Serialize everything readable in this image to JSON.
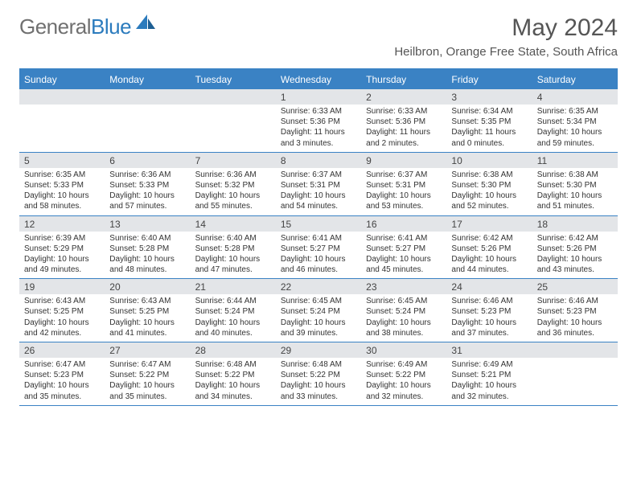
{
  "brand": {
    "part1": "General",
    "part2": "Blue"
  },
  "title": "May 2024",
  "location": "Heilbron, Orange Free State, South Africa",
  "colors": {
    "accent": "#3a82c4",
    "header_bg": "#3a82c4",
    "datenum_bg": "#e3e5e8",
    "text": "#333333",
    "muted": "#707070"
  },
  "day_names": [
    "Sunday",
    "Monday",
    "Tuesday",
    "Wednesday",
    "Thursday",
    "Friday",
    "Saturday"
  ],
  "weeks": [
    [
      null,
      null,
      null,
      {
        "n": "1",
        "sr": "6:33 AM",
        "ss": "5:36 PM",
        "dl": "11 hours and 3 minutes."
      },
      {
        "n": "2",
        "sr": "6:33 AM",
        "ss": "5:36 PM",
        "dl": "11 hours and 2 minutes."
      },
      {
        "n": "3",
        "sr": "6:34 AM",
        "ss": "5:35 PM",
        "dl": "11 hours and 0 minutes."
      },
      {
        "n": "4",
        "sr": "6:35 AM",
        "ss": "5:34 PM",
        "dl": "10 hours and 59 minutes."
      }
    ],
    [
      {
        "n": "5",
        "sr": "6:35 AM",
        "ss": "5:33 PM",
        "dl": "10 hours and 58 minutes."
      },
      {
        "n": "6",
        "sr": "6:36 AM",
        "ss": "5:33 PM",
        "dl": "10 hours and 57 minutes."
      },
      {
        "n": "7",
        "sr": "6:36 AM",
        "ss": "5:32 PM",
        "dl": "10 hours and 55 minutes."
      },
      {
        "n": "8",
        "sr": "6:37 AM",
        "ss": "5:31 PM",
        "dl": "10 hours and 54 minutes."
      },
      {
        "n": "9",
        "sr": "6:37 AM",
        "ss": "5:31 PM",
        "dl": "10 hours and 53 minutes."
      },
      {
        "n": "10",
        "sr": "6:38 AM",
        "ss": "5:30 PM",
        "dl": "10 hours and 52 minutes."
      },
      {
        "n": "11",
        "sr": "6:38 AM",
        "ss": "5:30 PM",
        "dl": "10 hours and 51 minutes."
      }
    ],
    [
      {
        "n": "12",
        "sr": "6:39 AM",
        "ss": "5:29 PM",
        "dl": "10 hours and 49 minutes."
      },
      {
        "n": "13",
        "sr": "6:40 AM",
        "ss": "5:28 PM",
        "dl": "10 hours and 48 minutes."
      },
      {
        "n": "14",
        "sr": "6:40 AM",
        "ss": "5:28 PM",
        "dl": "10 hours and 47 minutes."
      },
      {
        "n": "15",
        "sr": "6:41 AM",
        "ss": "5:27 PM",
        "dl": "10 hours and 46 minutes."
      },
      {
        "n": "16",
        "sr": "6:41 AM",
        "ss": "5:27 PM",
        "dl": "10 hours and 45 minutes."
      },
      {
        "n": "17",
        "sr": "6:42 AM",
        "ss": "5:26 PM",
        "dl": "10 hours and 44 minutes."
      },
      {
        "n": "18",
        "sr": "6:42 AM",
        "ss": "5:26 PM",
        "dl": "10 hours and 43 minutes."
      }
    ],
    [
      {
        "n": "19",
        "sr": "6:43 AM",
        "ss": "5:25 PM",
        "dl": "10 hours and 42 minutes."
      },
      {
        "n": "20",
        "sr": "6:43 AM",
        "ss": "5:25 PM",
        "dl": "10 hours and 41 minutes."
      },
      {
        "n": "21",
        "sr": "6:44 AM",
        "ss": "5:24 PM",
        "dl": "10 hours and 40 minutes."
      },
      {
        "n": "22",
        "sr": "6:45 AM",
        "ss": "5:24 PM",
        "dl": "10 hours and 39 minutes."
      },
      {
        "n": "23",
        "sr": "6:45 AM",
        "ss": "5:24 PM",
        "dl": "10 hours and 38 minutes."
      },
      {
        "n": "24",
        "sr": "6:46 AM",
        "ss": "5:23 PM",
        "dl": "10 hours and 37 minutes."
      },
      {
        "n": "25",
        "sr": "6:46 AM",
        "ss": "5:23 PM",
        "dl": "10 hours and 36 minutes."
      }
    ],
    [
      {
        "n": "26",
        "sr": "6:47 AM",
        "ss": "5:23 PM",
        "dl": "10 hours and 35 minutes."
      },
      {
        "n": "27",
        "sr": "6:47 AM",
        "ss": "5:22 PM",
        "dl": "10 hours and 35 minutes."
      },
      {
        "n": "28",
        "sr": "6:48 AM",
        "ss": "5:22 PM",
        "dl": "10 hours and 34 minutes."
      },
      {
        "n": "29",
        "sr": "6:48 AM",
        "ss": "5:22 PM",
        "dl": "10 hours and 33 minutes."
      },
      {
        "n": "30",
        "sr": "6:49 AM",
        "ss": "5:22 PM",
        "dl": "10 hours and 32 minutes."
      },
      {
        "n": "31",
        "sr": "6:49 AM",
        "ss": "5:21 PM",
        "dl": "10 hours and 32 minutes."
      },
      null
    ]
  ],
  "labels": {
    "sunrise": "Sunrise:",
    "sunset": "Sunset:",
    "daylight": "Daylight:"
  }
}
